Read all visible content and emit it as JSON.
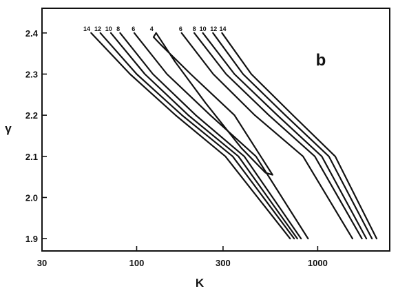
{
  "chart_data": {
    "type": "line",
    "panel_label": "b",
    "xlabel": "K",
    "ylabel": "γ",
    "xscale": "log",
    "xlim": [
      30,
      2500
    ],
    "ylim": [
      1.87,
      2.46
    ],
    "x_ticks": [
      {
        "value": 30,
        "label": "30"
      },
      {
        "value": 100,
        "label": "100"
      },
      {
        "value": 300,
        "label": "300"
      },
      {
        "value": 1000,
        "label": "1000"
      }
    ],
    "y_ticks": [
      {
        "value": 1.9,
        "label": "1.9"
      },
      {
        "value": 2.0,
        "label": "2.0"
      },
      {
        "value": 2.1,
        "label": "2.1"
      },
      {
        "value": 2.2,
        "label": "2.2"
      },
      {
        "value": 2.3,
        "label": "2.3"
      },
      {
        "value": 2.4,
        "label": "2.4"
      }
    ],
    "grid": false,
    "series": [
      {
        "label": "14",
        "side": "left",
        "label_at": [
          53,
          2.41
        ],
        "x": [
          56,
          92,
          164,
          309,
          704
        ],
        "y": [
          2.4,
          2.3,
          2.2,
          2.1,
          1.9
        ]
      },
      {
        "label": "12",
        "side": "left",
        "label_at": [
          61,
          2.41
        ],
        "x": [
          63,
          100,
          178,
          339,
          741
        ],
        "y": [
          2.4,
          2.3,
          2.2,
          2.1,
          1.9
        ]
      },
      {
        "label": "10",
        "side": "left",
        "label_at": [
          70,
          2.41
        ],
        "x": [
          72,
          111,
          193,
          365,
          772
        ],
        "y": [
          2.4,
          2.3,
          2.2,
          2.1,
          1.9
        ]
      },
      {
        "label": "8",
        "side": "left",
        "label_at": [
          79,
          2.41
        ],
        "x": [
          81,
          123,
          212,
          393,
          809
        ],
        "y": [
          2.4,
          2.3,
          2.2,
          2.1,
          1.9
        ]
      },
      {
        "label": "6",
        "side": "left",
        "label_at": [
          96,
          2.41
        ],
        "x": [
          97,
          147,
          255,
          456,
          885
        ],
        "y": [
          2.4,
          2.3,
          2.2,
          2.1,
          1.9
        ]
      },
      {
        "label": "4",
        "side": "left",
        "label_at": [
          121,
          2.41
        ],
        "x": [
          128,
          124,
          137,
          199,
          347,
          563,
          515,
          379,
          240,
          163,
          128
        ],
        "y": [
          2.4,
          2.39,
          2.37,
          2.3,
          2.2,
          2.055,
          2.06,
          2.12,
          2.23,
          2.33,
          2.4
        ]
      },
      {
        "label": "6",
        "side": "right",
        "label_at": [
          175,
          2.41
        ],
        "x": [
          177,
          265,
          449,
          830,
          1557
        ],
        "y": [
          2.4,
          2.3,
          2.2,
          2.1,
          1.9
        ]
      },
      {
        "label": "8",
        "side": "right",
        "label_at": [
          208,
          2.41
        ],
        "x": [
          208,
          312,
          537,
          964,
          1755
        ],
        "y": [
          2.4,
          2.3,
          2.2,
          2.1,
          1.9
        ]
      },
      {
        "label": "10",
        "side": "right",
        "label_at": [
          232,
          2.41
        ],
        "x": [
          232,
          347,
          598,
          1053,
          1857
        ],
        "y": [
          2.4,
          2.3,
          2.2,
          2.1,
          1.9
        ]
      },
      {
        "label": "12",
        "side": "right",
        "label_at": [
          266,
          2.41
        ],
        "x": [
          264,
          387,
          662,
          1153,
          1994
        ],
        "y": [
          2.4,
          2.3,
          2.2,
          2.1,
          1.9
        ]
      },
      {
        "label": "14",
        "side": "right",
        "label_at": [
          299,
          2.41
        ],
        "x": [
          296,
          430,
          730,
          1249,
          2117
        ],
        "y": [
          2.4,
          2.3,
          2.2,
          2.1,
          1.9
        ]
      }
    ]
  }
}
